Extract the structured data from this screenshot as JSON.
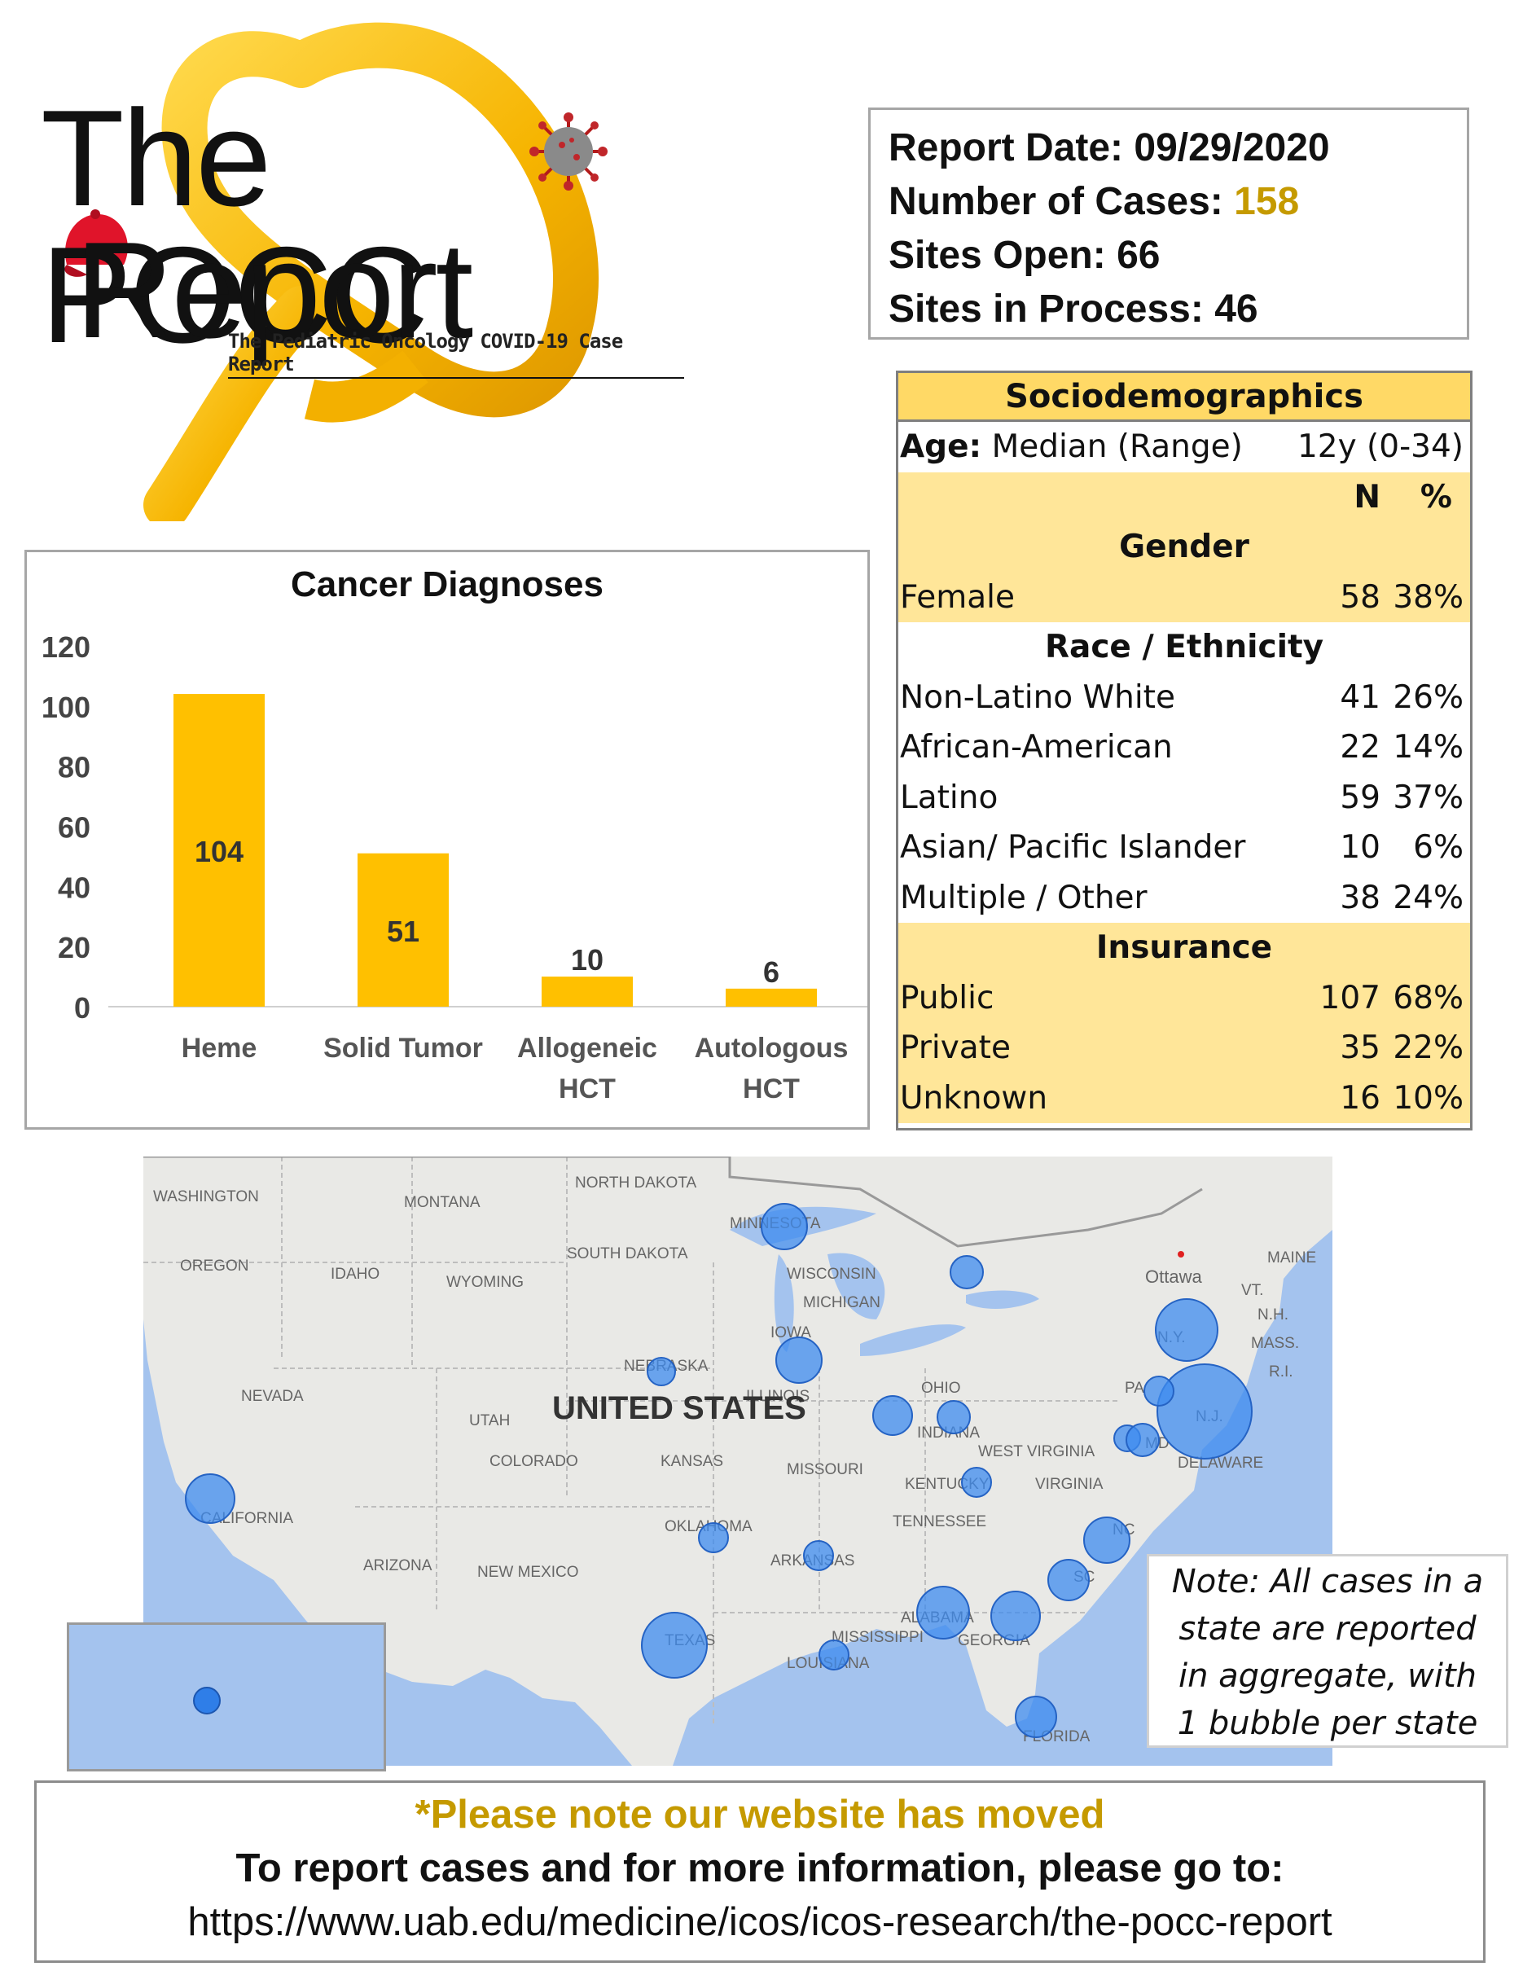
{
  "logo": {
    "line1": "The POCC",
    "line2": "Report",
    "subtitle": "The Pediatric Oncology COVID-19 Case Report"
  },
  "report": {
    "date_label": "Report Date:",
    "date_value": "09/29/2020",
    "cases_label": "Number of Cases:",
    "cases_value": "158",
    "sites_open_label": "Sites Open:",
    "sites_open_value": "66",
    "sites_process_label": "Sites in Process:",
    "sites_process_value": "46"
  },
  "socio": {
    "title": "Sociodemographics",
    "age_label": "Age:",
    "age_desc": "Median (Range)",
    "age_value": "12y (0-34)",
    "col_n": "N",
    "col_pct": "%",
    "gender_title": "Gender",
    "gender_rows": [
      {
        "label": "Female",
        "n": "58",
        "pct": "38%"
      }
    ],
    "race_title": "Race / Ethnicity",
    "race_rows": [
      {
        "label": "Non-Latino White",
        "n": "41",
        "pct": "26%"
      },
      {
        "label": "African-American",
        "n": "22",
        "pct": "14%"
      },
      {
        "label": "Latino",
        "n": "59",
        "pct": "37%"
      },
      {
        "label": "Asian/ Pacific Islander",
        "n": "10",
        "pct": "6%"
      },
      {
        "label": "Multiple / Other",
        "n": "38",
        "pct": "24%"
      }
    ],
    "insurance_title": "Insurance",
    "insurance_rows": [
      {
        "label": "Public",
        "n": "107",
        "pct": "68%"
      },
      {
        "label": "Private",
        "n": "35",
        "pct": "22%"
      },
      {
        "label": "Unknown",
        "n": "16",
        "pct": "10%"
      }
    ]
  },
  "chart_data": {
    "type": "bar",
    "title": "Cancer Diagnoses",
    "categories": [
      [
        "Heme"
      ],
      [
        "Solid Tumor"
      ],
      [
        "Allogeneic",
        "HCT"
      ],
      [
        "Autologous",
        "HCT"
      ]
    ],
    "values": [
      104,
      51,
      10,
      6
    ],
    "ylim": [
      0,
      120
    ],
    "yticks": [
      0,
      20,
      40,
      60,
      80,
      100,
      120
    ],
    "xlabel": "",
    "ylabel": "",
    "grid": false,
    "bar_color": "#ffc000",
    "label_color": "#333333"
  },
  "map": {
    "country_label": "UNITED STATES",
    "place_labels": [
      "WASHINGTON",
      "MONTANA",
      "NORTH DAKOTA",
      "MINNESOTA",
      "WISCONSIN",
      "OREGON",
      "IDAHO",
      "SOUTH DAKOTA",
      "WYOMING",
      "MICHIGAN",
      "Ottawa",
      "VT.",
      "N.H.",
      "MAINE",
      "MASS.",
      "R.I.",
      "N.Y.",
      "IOWA",
      "NEBRASKA",
      "NEVADA",
      "UTAH",
      "ILLINOIS",
      "OHIO",
      "PA",
      "N.J.",
      "INDIANA",
      "WEST VIRGINIA",
      "MD",
      "DELAWARE",
      "COLORADO",
      "KANSAS",
      "MISSOURI",
      "KENTUCKY",
      "VIRGINIA",
      "CALIFORNIA",
      "OKLAHOMA",
      "TENNESSEE",
      "NC",
      "ARKANSAS",
      "SC",
      "ARIZONA",
      "NEW MEXICO",
      "ALABAMA",
      "GEORGIA",
      "TEXAS",
      "MISSISSIPPI",
      "LOUISIANA",
      "FLORIDA"
    ],
    "bubble_color": "#3d8bef",
    "land_color": "#e8e8e5",
    "water_color": "#a4c3ee"
  },
  "note": {
    "lines": [
      "Note: All cases in a",
      "state are reported",
      "in aggregate, with",
      "1 bubble per state"
    ]
  },
  "footer": {
    "moved": "*Please note our website has moved",
    "report": "To report cases and for more information, please go to:",
    "url": "https://www.uab.edu/medicine/icos/icos-research/the-pocc-report"
  }
}
